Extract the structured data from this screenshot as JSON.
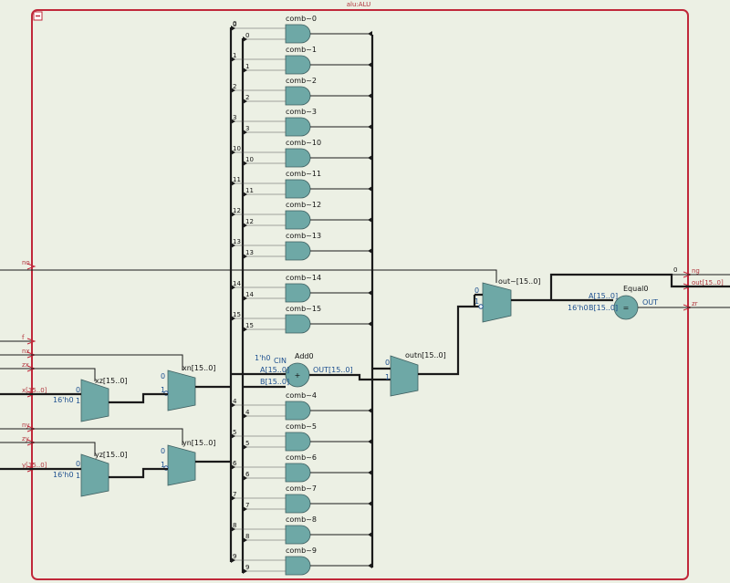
{
  "colors": {
    "background": "#ecf0e4",
    "frame": "#c0283a",
    "gate": "#6ea8a6",
    "wire": "#1a1a1a",
    "pin_label": "#b0353d",
    "const_blue": "#1d4f8f"
  },
  "module": {
    "title": "alu:ALU",
    "collapse_icon": "minus-box-icon"
  },
  "input_ports": [
    "no",
    "f",
    "nx",
    "zx",
    "x[15..0]",
    "ny",
    "zy",
    "y[15..0]"
  ],
  "output_ports": [
    "ng",
    "out[15..0]",
    "zr"
  ],
  "and_gates": [
    {
      "name": "comb~0",
      "bit": "0"
    },
    {
      "name": "comb~1",
      "bit": "1"
    },
    {
      "name": "comb~2",
      "bit": "2"
    },
    {
      "name": "comb~3",
      "bit": "3"
    },
    {
      "name": "comb~10",
      "bit": "10"
    },
    {
      "name": "comb~11",
      "bit": "11"
    },
    {
      "name": "comb~12",
      "bit": "12"
    },
    {
      "name": "comb~13",
      "bit": "13"
    },
    {
      "name": "comb~14",
      "bit": "14"
    },
    {
      "name": "comb~15",
      "bit": "15"
    },
    {
      "name": "comb~4",
      "bit": "4"
    },
    {
      "name": "comb~5",
      "bit": "5"
    },
    {
      "name": "comb~6",
      "bit": "6"
    },
    {
      "name": "comb~7",
      "bit": "7"
    },
    {
      "name": "comb~8",
      "bit": "8"
    },
    {
      "name": "comb~9",
      "bit": "9"
    }
  ],
  "muxes": {
    "xz": {
      "name": "xz[15..0]",
      "sel0": "0",
      "sel1": "1",
      "const": "16'h0"
    },
    "xn": {
      "name": "xn[15..0]",
      "sel0": "0",
      "sel1": "1"
    },
    "yz": {
      "name": "yz[15..0]",
      "sel0": "0",
      "sel1": "1",
      "const": "16'h0"
    },
    "yn": {
      "name": "yn[15..0]",
      "sel0": "0",
      "sel1": "1"
    },
    "outn": {
      "name": "outn[15..0]",
      "sel0": "0",
      "sel1": "1"
    },
    "out": {
      "name": "out~[15..0]",
      "sel0": "0",
      "sel1": "1"
    }
  },
  "adder": {
    "name": "Add0",
    "cin_const": "1'h0",
    "cin": "CIN",
    "a": "A[15..0]",
    "b": "B[15..0]",
    "out": "OUT[15..0]",
    "symbol": "+"
  },
  "comparator": {
    "name": "Equal0",
    "a": "A[15..0]",
    "b": "B[15..0]",
    "b_const": "16'h0",
    "out": "OUT",
    "symbol": "="
  },
  "ng_bit": "0"
}
